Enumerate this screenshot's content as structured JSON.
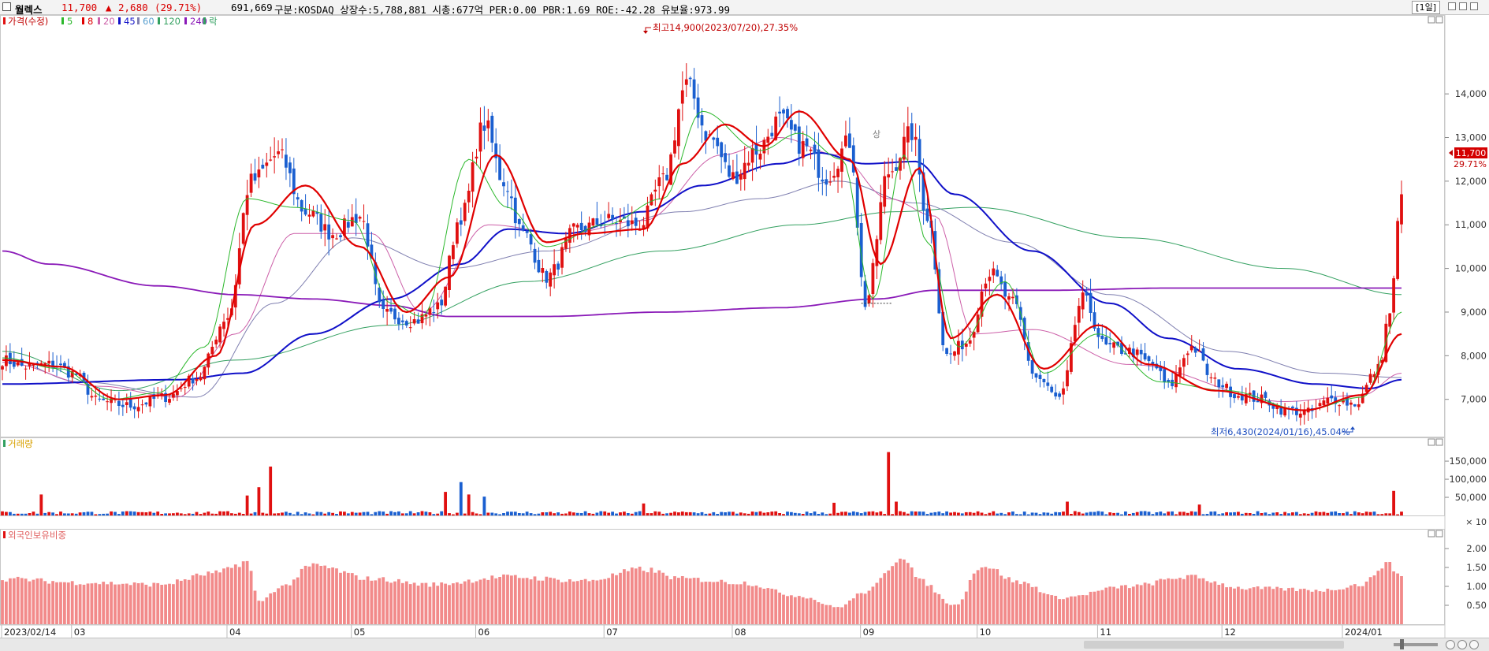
{
  "header": {
    "name": "월렉스",
    "price": "11,700",
    "change_arrow": "▲",
    "change": "2,680",
    "change_pct": "(29.71%)",
    "volume": "691,669",
    "info": "구분:KOSDAQ 상장수:5,788,881 시총:677억 PER:0.00 PBR:1.69 ROE:-42.28 유보율:973.99",
    "timeframe": "[1일]"
  },
  "legend": {
    "price": "가격(수정)",
    "ma5": "5",
    "ma8": "8",
    "ma20": "20",
    "ma45": "45",
    "ma60": "60",
    "ma120": "120",
    "ma240": "240",
    "rak": "락",
    "volume": "거래량",
    "foreign": "외국인보유비중"
  },
  "annotations": {
    "high": "최고14,900(2023/07/20),27.35%",
    "low": "최저6,430(2024/01/16),45.04%",
    "current_price": "11,700",
    "current_pct": "29.71%",
    "sang": "상"
  },
  "colors": {
    "up": "#e01010",
    "down": "#1a5fd0",
    "ma5": "#2cb82c",
    "ma8": "#e00000",
    "ma20": "#cc5fa8",
    "ma45": "#1010c8",
    "ma60": "#7f7fb0",
    "ma120": "#33a060",
    "ma240": "#8a1ab8",
    "foreign": "#f28a8a"
  },
  "chart_data": [
    {
      "type": "candlestick",
      "title": "월렉스",
      "x_labels": [
        "2023/02/14",
        "03",
        "04",
        "05",
        "06",
        "07",
        "08",
        "09",
        "10",
        "11",
        "12",
        "2024/01"
      ],
      "y_ticks": [
        "7,000",
        "8,000",
        "9,000",
        "10,000",
        "11,000",
        "12,000",
        "13,000",
        "14,000"
      ],
      "ylim": [
        6200,
        15700
      ],
      "series_names": [
        "가격(수정)",
        "5",
        "8",
        "20",
        "45",
        "60",
        "120",
        "240"
      ],
      "anchors": {
        "close": [
          [
            0,
            7900
          ],
          [
            6,
            7750
          ],
          [
            13,
            7800
          ],
          [
            18,
            7600
          ],
          [
            25,
            6950
          ],
          [
            33,
            6850
          ],
          [
            42,
            7050
          ],
          [
            50,
            7500
          ],
          [
            58,
            8900
          ],
          [
            64,
            12000
          ],
          [
            71,
            12600
          ],
          [
            78,
            11300
          ],
          [
            85,
            10800
          ],
          [
            92,
            11200
          ],
          [
            98,
            8950
          ],
          [
            106,
            8800
          ],
          [
            112,
            9100
          ],
          [
            118,
            11200
          ],
          [
            124,
            13300
          ],
          [
            129,
            12000
          ],
          [
            134,
            10800
          ],
          [
            140,
            9800
          ],
          [
            148,
            10900
          ],
          [
            156,
            11100
          ],
          [
            164,
            11000
          ],
          [
            170,
            12000
          ],
          [
            176,
            14200
          ],
          [
            182,
            13000
          ],
          [
            188,
            12100
          ],
          [
            194,
            12700
          ],
          [
            200,
            13400
          ],
          [
            206,
            12800
          ],
          [
            212,
            12100
          ],
          [
            218,
            12900
          ],
          [
            222,
            9200
          ],
          [
            228,
            12200
          ],
          [
            234,
            13100
          ],
          [
            238,
            11200
          ],
          [
            243,
            8000
          ],
          [
            248,
            8300
          ],
          [
            254,
            9900
          ],
          [
            260,
            9200
          ],
          [
            266,
            7500
          ],
          [
            272,
            7000
          ],
          [
            278,
            9300
          ],
          [
            284,
            8200
          ],
          [
            290,
            8100
          ],
          [
            296,
            7800
          ],
          [
            300,
            7300
          ],
          [
            306,
            8200
          ],
          [
            312,
            7400
          ],
          [
            318,
            7100
          ],
          [
            324,
            7000
          ],
          [
            330,
            6750
          ],
          [
            336,
            6700
          ],
          [
            342,
            7000
          ],
          [
            348,
            6900
          ],
          [
            354,
            7700
          ],
          [
            357,
            9000
          ],
          [
            360,
            11700
          ]
        ],
        "ma5": [
          [
            0,
            7950
          ],
          [
            15,
            7700
          ],
          [
            28,
            7000
          ],
          [
            40,
            7150
          ],
          [
            52,
            8200
          ],
          [
            63,
            11600
          ],
          [
            75,
            11400
          ],
          [
            90,
            11100
          ],
          [
            100,
            9200
          ],
          [
            108,
            8900
          ],
          [
            120,
            12500
          ],
          [
            130,
            11400
          ],
          [
            140,
            10500
          ],
          [
            155,
            11000
          ],
          [
            170,
            11600
          ],
          [
            180,
            13600
          ],
          [
            195,
            12700
          ],
          [
            205,
            13100
          ],
          [
            216,
            12500
          ],
          [
            224,
            9300
          ],
          [
            232,
            12600
          ],
          [
            238,
            10600
          ],
          [
            246,
            8200
          ],
          [
            258,
            9700
          ],
          [
            268,
            7600
          ],
          [
            282,
            8500
          ],
          [
            298,
            7400
          ],
          [
            315,
            7200
          ],
          [
            335,
            6750
          ],
          [
            350,
            7050
          ],
          [
            360,
            9000
          ]
        ],
        "ma8": [
          [
            0,
            7900
          ],
          [
            15,
            7750
          ],
          [
            30,
            7000
          ],
          [
            42,
            7100
          ],
          [
            55,
            8000
          ],
          [
            65,
            11000
          ],
          [
            78,
            11900
          ],
          [
            92,
            10500
          ],
          [
            104,
            9000
          ],
          [
            115,
            9800
          ],
          [
            127,
            12600
          ],
          [
            140,
            10600
          ],
          [
            150,
            10800
          ],
          [
            165,
            10900
          ],
          [
            175,
            12400
          ],
          [
            186,
            13300
          ],
          [
            196,
            12800
          ],
          [
            205,
            13600
          ],
          [
            218,
            12500
          ],
          [
            226,
            10100
          ],
          [
            236,
            12300
          ],
          [
            244,
            8400
          ],
          [
            256,
            9400
          ],
          [
            268,
            7700
          ],
          [
            282,
            8700
          ],
          [
            295,
            7800
          ],
          [
            312,
            7200
          ],
          [
            335,
            6750
          ],
          [
            350,
            7100
          ],
          [
            360,
            8500
          ]
        ],
        "ma20": [
          [
            0,
            7850
          ],
          [
            25,
            7300
          ],
          [
            45,
            7050
          ],
          [
            60,
            8500
          ],
          [
            75,
            10800
          ],
          [
            95,
            10800
          ],
          [
            108,
            9000
          ],
          [
            125,
            11000
          ],
          [
            145,
            10800
          ],
          [
            165,
            11100
          ],
          [
            185,
            12600
          ],
          [
            200,
            13000
          ],
          [
            215,
            12600
          ],
          [
            228,
            11600
          ],
          [
            240,
            11200
          ],
          [
            250,
            8500
          ],
          [
            265,
            8600
          ],
          [
            290,
            7800
          ],
          [
            330,
            6950
          ],
          [
            350,
            7100
          ],
          [
            360,
            7600
          ]
        ],
        "ma45": [
          [
            0,
            7350
          ],
          [
            45,
            7450
          ],
          [
            62,
            7600
          ],
          [
            80,
            8500
          ],
          [
            100,
            9300
          ],
          [
            118,
            10100
          ],
          [
            130,
            10900
          ],
          [
            145,
            10800
          ],
          [
            165,
            11300
          ],
          [
            180,
            11900
          ],
          [
            200,
            12400
          ],
          [
            210,
            12650
          ],
          [
            222,
            12400
          ],
          [
            235,
            12450
          ],
          [
            245,
            11700
          ],
          [
            265,
            10400
          ],
          [
            285,
            9200
          ],
          [
            300,
            8400
          ],
          [
            318,
            7700
          ],
          [
            338,
            7350
          ],
          [
            352,
            7250
          ],
          [
            360,
            7450
          ]
        ],
        "ma60": [
          [
            0,
            7950
          ],
          [
            20,
            7400
          ],
          [
            50,
            7050
          ],
          [
            70,
            9200
          ],
          [
            90,
            10700
          ],
          [
            115,
            10000
          ],
          [
            140,
            10400
          ],
          [
            175,
            11300
          ],
          [
            195,
            11600
          ],
          [
            215,
            12000
          ],
          [
            235,
            11500
          ],
          [
            260,
            10600
          ],
          [
            285,
            9400
          ],
          [
            315,
            8100
          ],
          [
            340,
            7600
          ],
          [
            360,
            7500
          ]
        ],
        "ma120": [
          [
            0,
            8100
          ],
          [
            30,
            7200
          ],
          [
            60,
            7900
          ],
          [
            100,
            8700
          ],
          [
            135,
            9700
          ],
          [
            170,
            10400
          ],
          [
            205,
            11000
          ],
          [
            230,
            11300
          ],
          [
            250,
            11400
          ],
          [
            290,
            10700
          ],
          [
            330,
            10000
          ],
          [
            360,
            9400
          ]
        ],
        "ma240": [
          [
            0,
            10400
          ],
          [
            12,
            10100
          ],
          [
            40,
            9600
          ],
          [
            60,
            9400
          ],
          [
            80,
            9300
          ],
          [
            100,
            9150
          ],
          [
            115,
            8900
          ],
          [
            140,
            8900
          ],
          [
            170,
            9000
          ],
          [
            200,
            9100
          ],
          [
            225,
            9300
          ],
          [
            240,
            9500
          ],
          [
            270,
            9500
          ],
          [
            300,
            9550
          ],
          [
            330,
            9550
          ],
          [
            360,
            9550
          ]
        ]
      }
    },
    {
      "type": "bar",
      "title": "거래량",
      "y_ticks": [
        "50,000",
        "100,000",
        "150,000"
      ],
      "ylim": [
        0,
        185000
      ],
      "unit_label": "× 10",
      "peaks": [
        [
          10,
          58000
        ],
        [
          63,
          55000
        ],
        [
          66,
          78000
        ],
        [
          69,
          135000
        ],
        [
          114,
          65000
        ],
        [
          118,
          92000
        ],
        [
          120,
          58000
        ],
        [
          124,
          52000
        ],
        [
          165,
          33000
        ],
        [
          214,
          35000
        ],
        [
          228,
          175000
        ],
        [
          230,
          38000
        ],
        [
          274,
          38000
        ],
        [
          308,
          30000
        ],
        [
          358,
          68000
        ],
        [
          362,
          65000
        ]
      ]
    },
    {
      "type": "bar",
      "title": "외국인보유비중",
      "y_ticks": [
        "0.50",
        "1.00",
        "1.50",
        "2.00"
      ],
      "ylim": [
        0,
        2.25
      ],
      "anchors": [
        [
          0,
          1.2
        ],
        [
          20,
          1.1
        ],
        [
          40,
          1.05
        ],
        [
          55,
          1.35
        ],
        [
          63,
          1.65
        ],
        [
          66,
          0.6
        ],
        [
          72,
          1.0
        ],
        [
          80,
          1.55
        ],
        [
          95,
          1.2
        ],
        [
          110,
          1.05
        ],
        [
          130,
          1.25
        ],
        [
          150,
          1.15
        ],
        [
          165,
          1.45
        ],
        [
          175,
          1.2
        ],
        [
          190,
          1.1
        ],
        [
          205,
          0.75
        ],
        [
          215,
          0.45
        ],
        [
          222,
          0.85
        ],
        [
          232,
          1.8
        ],
        [
          236,
          1.15
        ],
        [
          245,
          0.5
        ],
        [
          252,
          1.55
        ],
        [
          262,
          1.1
        ],
        [
          272,
          0.7
        ],
        [
          290,
          1.0
        ],
        [
          305,
          1.25
        ],
        [
          320,
          0.95
        ],
        [
          340,
          0.9
        ],
        [
          350,
          1.05
        ],
        [
          356,
          1.6
        ],
        [
          360,
          1.3
        ]
      ]
    }
  ]
}
